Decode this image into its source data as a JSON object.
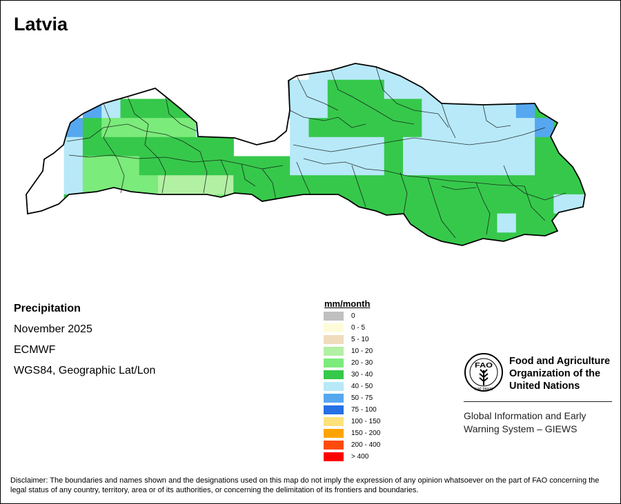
{
  "title": "Latvia",
  "info": {
    "variable": "Precipitation",
    "period": "November 2025",
    "source": "ECMWF",
    "projection": "WGS84, Geographic Lat/Lon"
  },
  "legend": {
    "unit": "mm/month",
    "classes": [
      {
        "label": "0",
        "color": "#c0c0c0"
      },
      {
        "label": "0 - 5",
        "color": "#fefbd9"
      },
      {
        "label": "5 - 10",
        "color": "#efdcbc"
      },
      {
        "label": "10 - 20",
        "color": "#b2f0a4"
      },
      {
        "label": "20 - 30",
        "color": "#7beb7b"
      },
      {
        "label": "30 - 40",
        "color": "#36c84b"
      },
      {
        "label": "40 - 50",
        "color": "#b7e9f8"
      },
      {
        "label": "50 - 75",
        "color": "#55a8ef"
      },
      {
        "label": "75 - 100",
        "color": "#2670e6"
      },
      {
        "label": "100 - 150",
        "color": "#fde27a"
      },
      {
        "label": "150 - 200",
        "color": "#fda404"
      },
      {
        "label": "200 - 400",
        "color": "#fe4b0c"
      },
      {
        "label": "> 400",
        "color": "#fe0000"
      }
    ]
  },
  "organization": {
    "name": "Food and Agriculture Organization of the United Nations",
    "logo_text": "FAO",
    "motto": "FIAT PANIS",
    "system": "Global Information and Early Warning System – GIEWS"
  },
  "disclaimer": "Disclaimer: The boundaries and names shown and the designations used on this map do not imply the expression of any opinion whatsoever on the part of FAO concerning the legal status of any country, territory, area or of its authorities, or concerning the delimitation of its frontiers and boundaries."
}
